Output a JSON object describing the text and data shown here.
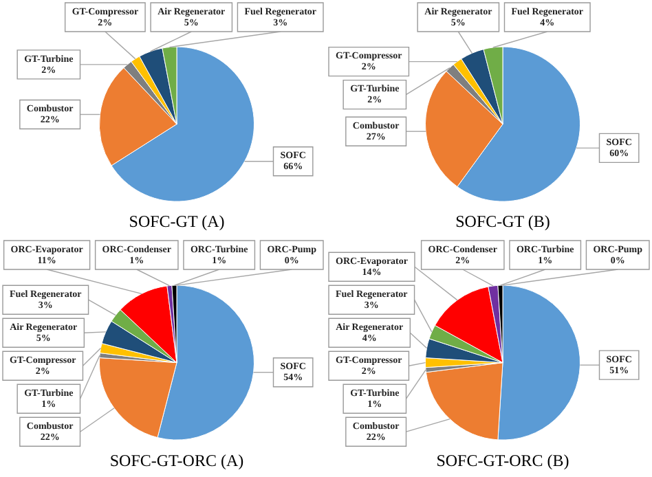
{
  "chart_data": [
    {
      "type": "pie",
      "title": "SOFC-GT (A)",
      "categories": [
        "SOFC",
        "Combustor",
        "GT-Turbine",
        "GT-Compressor",
        "Air Regenerator",
        "Fuel Regenerator"
      ],
      "values": [
        66,
        22,
        2,
        2,
        5,
        3
      ],
      "value_labels": [
        "66%",
        "22%",
        "2%",
        "2%",
        "5%",
        "3%"
      ],
      "colors": [
        "#5b9bd5",
        "#ed7d31",
        "#7f7f7f",
        "#ffc000",
        "#1f4e79",
        "#70ad47"
      ]
    },
    {
      "type": "pie",
      "title": "SOFC-GT (B)",
      "categories": [
        "SOFC",
        "Combustor",
        "GT-Turbine",
        "GT-Compressor",
        "Air Regenerator",
        "Fuel Regenerator"
      ],
      "values": [
        60,
        27,
        2,
        2,
        5,
        4
      ],
      "value_labels": [
        "60%",
        "27%",
        "2%",
        "2%",
        "5%",
        "4%"
      ],
      "colors": [
        "#5b9bd5",
        "#ed7d31",
        "#7f7f7f",
        "#ffc000",
        "#1f4e79",
        "#70ad47"
      ]
    },
    {
      "type": "pie",
      "title": "SOFC-GT-ORC (A)",
      "categories": [
        "SOFC",
        "Combustor",
        "GT-Turbine",
        "GT-Compressor",
        "Air Regenerator",
        "Fuel Regenerator",
        "ORC-Evaporator",
        "ORC-Condenser",
        "ORC-Turbine",
        "ORC-Pump"
      ],
      "values": [
        54,
        22,
        1,
        2,
        5,
        3,
        11,
        1,
        1,
        0
      ],
      "value_labels": [
        "54%",
        "22%",
        "1%",
        "2%",
        "5%",
        "3%",
        "11%",
        "1%",
        "1%",
        "0%"
      ],
      "colors": [
        "#5b9bd5",
        "#ed7d31",
        "#7f7f7f",
        "#ffc000",
        "#1f4e79",
        "#70ad47",
        "#ff0000",
        "#7030a0",
        "#000000",
        "#0070c0"
      ]
    },
    {
      "type": "pie",
      "title": "SOFC-GT-ORC (B)",
      "categories": [
        "SOFC",
        "Combustor",
        "GT-Turbine",
        "GT-Compressor",
        "Air Regenerator",
        "Fuel Regenerator",
        "ORC-Evaporator",
        "ORC-Condenser",
        "ORC-Turbine",
        "ORC-Pump"
      ],
      "values": [
        51,
        22,
        1,
        2,
        4,
        3,
        14,
        2,
        1,
        0
      ],
      "value_labels": [
        "51%",
        "22%",
        "1%",
        "2%",
        "4%",
        "3%",
        "14%",
        "2%",
        "1%",
        "0%"
      ],
      "colors": [
        "#5b9bd5",
        "#ed7d31",
        "#7f7f7f",
        "#ffc000",
        "#1f4e79",
        "#70ad47",
        "#ff0000",
        "#7030a0",
        "#000000",
        "#0070c0"
      ]
    }
  ]
}
